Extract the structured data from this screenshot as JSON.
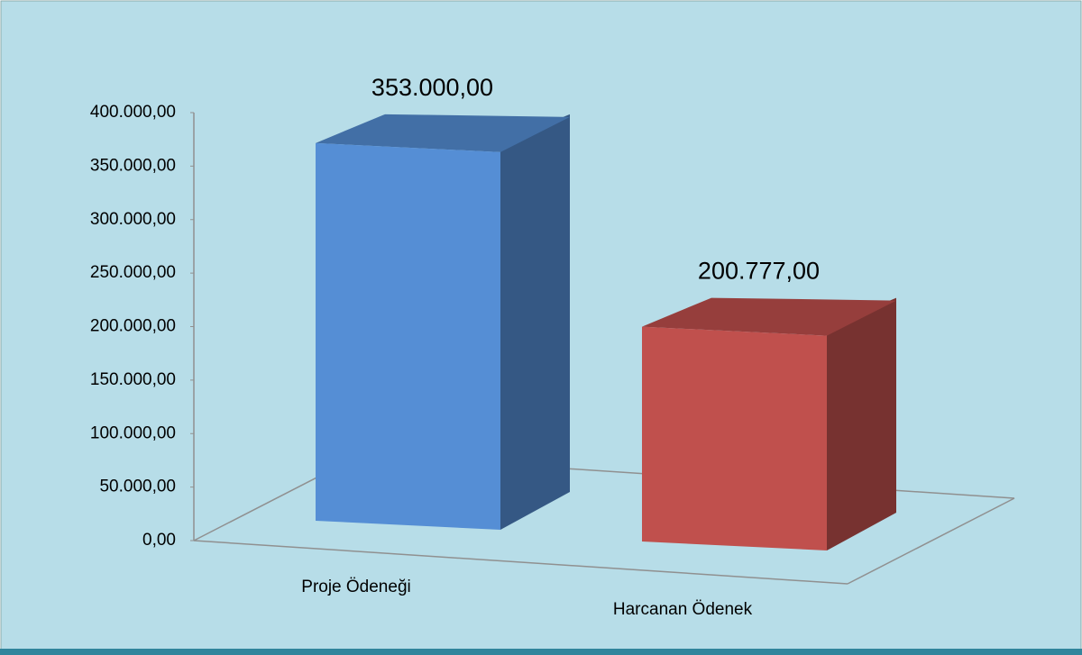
{
  "chart_data": {
    "type": "bar3d",
    "categories": [
      "Proje Ödeneği",
      "Harcanan Ödenek"
    ],
    "values": [
      353000,
      200777
    ],
    "value_labels": [
      "353.000,00",
      "200.777,00"
    ],
    "colors": [
      "#558ed5",
      "#c0504d"
    ],
    "ylim": [
      0,
      400000
    ],
    "yticks": [
      {
        "value": 0,
        "label": "0,00"
      },
      {
        "value": 50000,
        "label": "50.000,00"
      },
      {
        "value": 100000,
        "label": "100.000,00"
      },
      {
        "value": 150000,
        "label": "150.000,00"
      },
      {
        "value": 200000,
        "label": "200.000,00"
      },
      {
        "value": 250000,
        "label": "250.000,00"
      },
      {
        "value": 300000,
        "label": "300.000,00"
      },
      {
        "value": 350000,
        "label": "350.000,00"
      },
      {
        "value": 400000,
        "label": "400.000,00"
      }
    ]
  }
}
